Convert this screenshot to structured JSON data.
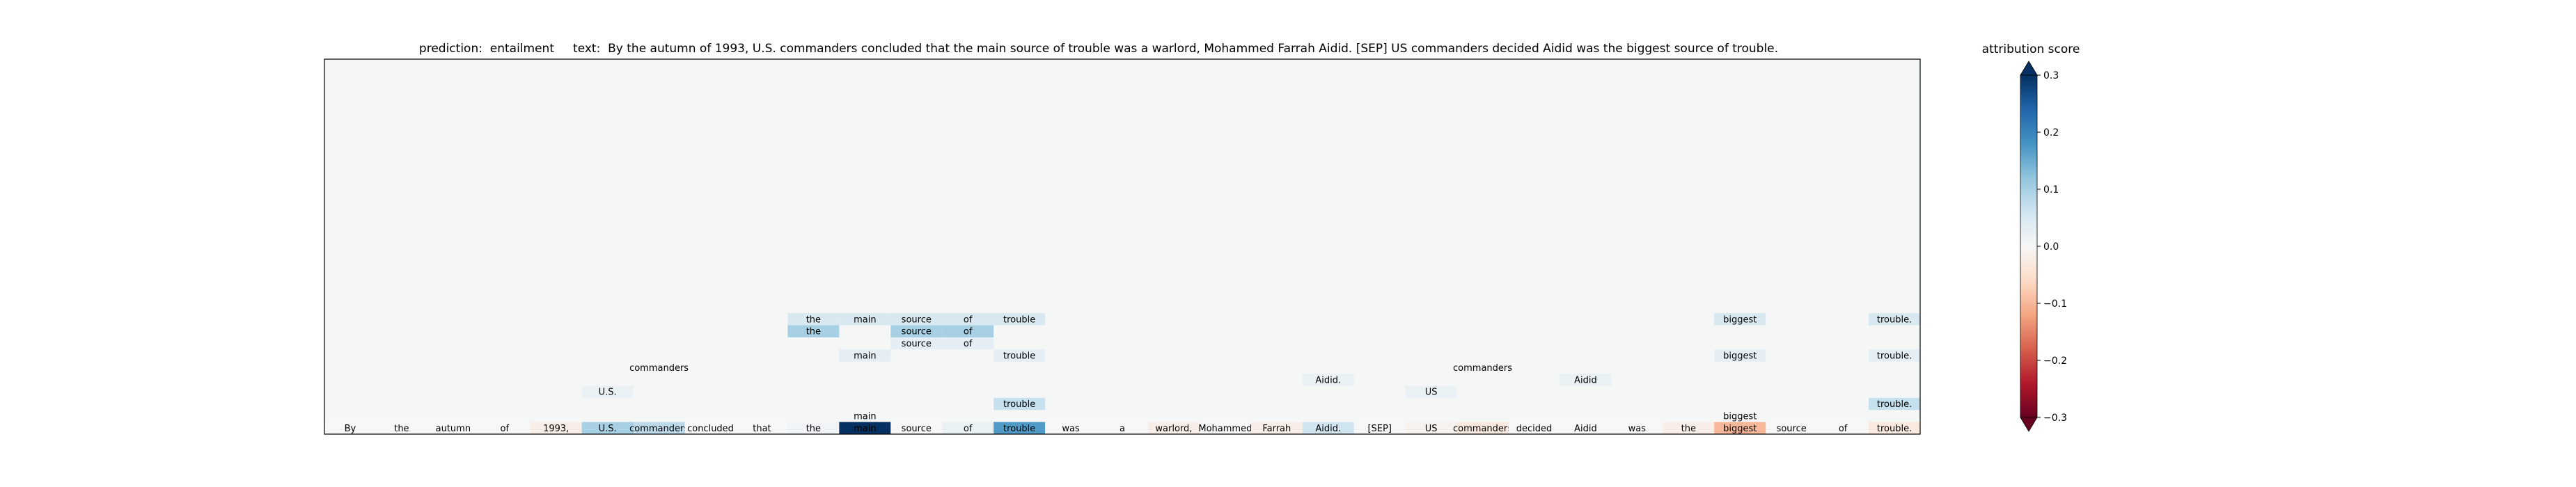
{
  "chart_data": {
    "type": "heatmap",
    "title": {
      "prediction_label": "prediction:",
      "prediction": "entailment",
      "text_label": "text:",
      "text": "By the autumn of 1993, U.S. commanders concluded that the main source of trouble was a warlord, Mohammed Farrah Aidid. [SEP] US commanders decided Aidid was the biggest source of trouble."
    },
    "tokens": [
      "By",
      "the",
      "autumn",
      "of",
      "1993,",
      "U.S.",
      "commanders",
      "concluded",
      "that",
      "the",
      "main",
      "source",
      "of",
      "trouble",
      "was",
      "a",
      "warlord,",
      "Mohammed",
      "Farrah",
      "Aidid.",
      "[SEP]",
      "US",
      "commanders",
      "decided",
      "Aidid",
      "was",
      "the",
      "biggest",
      "source",
      "of",
      "trouble."
    ],
    "token_scores": [
      0.0,
      0.0,
      0.0,
      0.0,
      -0.02,
      0.1,
      0.08,
      0.0,
      0.0,
      0.01,
      0.3,
      0.0,
      0.02,
      0.17,
      0.0,
      0.0,
      -0.02,
      0.0,
      -0.02,
      0.06,
      0.0,
      -0.01,
      -0.03,
      0.0,
      0.0,
      0.0,
      -0.02,
      -0.1,
      0.0,
      0.0,
      -0.03
    ],
    "layer_cells": [
      {
        "layer": 1,
        "token_index": 10,
        "label": "main",
        "score": 0.0
      },
      {
        "layer": 1,
        "token_index": 27,
        "label": "biggest",
        "score": 0.0
      },
      {
        "layer": 2,
        "token_index": 13,
        "label": "trouble",
        "score": 0.07
      },
      {
        "layer": 2,
        "token_index": 30,
        "label": "trouble.",
        "score": 0.07
      },
      {
        "layer": 3,
        "token_index": 5,
        "label": "U.S.",
        "score": 0.02
      },
      {
        "layer": 3,
        "token_index": 21,
        "label": "US",
        "score": 0.02
      },
      {
        "layer": 4,
        "token_index": 19,
        "label": "Aidid.",
        "score": 0.02
      },
      {
        "layer": 4,
        "token_index": 24,
        "label": "Aidid",
        "score": 0.02
      },
      {
        "layer": 5,
        "token_index": 6,
        "label": "commanders",
        "score": 0.0
      },
      {
        "layer": 5,
        "token_index": 22,
        "label": "commanders",
        "score": 0.0
      },
      {
        "layer": 6,
        "token_index": 10,
        "label": "main",
        "score": 0.03
      },
      {
        "layer": 6,
        "token_index": 13,
        "label": "trouble",
        "score": 0.03
      },
      {
        "layer": 6,
        "token_index": 27,
        "label": "biggest",
        "score": 0.03
      },
      {
        "layer": 6,
        "token_index": 30,
        "label": "trouble.",
        "score": 0.03
      },
      {
        "layer": 7,
        "token_index": 11,
        "label": "source",
        "score": 0.03
      },
      {
        "layer": 7,
        "token_index": 12,
        "label": "of",
        "score": 0.03
      },
      {
        "layer": 8,
        "token_index": 9,
        "label": "the",
        "score": 0.1
      },
      {
        "layer": 8,
        "token_index": 11,
        "label": "source",
        "score": 0.1
      },
      {
        "layer": 8,
        "token_index": 12,
        "label": "of",
        "score": 0.1
      },
      {
        "layer": 9,
        "token_index": 9,
        "label": "the",
        "score": 0.05
      },
      {
        "layer": 9,
        "token_index": 10,
        "label": "main",
        "score": 0.05
      },
      {
        "layer": 9,
        "token_index": 11,
        "label": "source",
        "score": 0.05
      },
      {
        "layer": 9,
        "token_index": 12,
        "label": "of",
        "score": 0.05
      },
      {
        "layer": 9,
        "token_index": 13,
        "label": "trouble",
        "score": 0.05
      },
      {
        "layer": 9,
        "token_index": 27,
        "label": "biggest",
        "score": 0.05
      },
      {
        "layer": 9,
        "token_index": 30,
        "label": "trouble.",
        "score": 0.05
      }
    ],
    "num_layers": 30,
    "colorbar": {
      "label": "attribution score",
      "range": [
        -0.3,
        0.3
      ],
      "ticks": [
        -0.3,
        -0.2,
        -0.1,
        0.0,
        0.1,
        0.2,
        0.3
      ],
      "tick_labels": [
        "−0.3",
        "−0.2",
        "−0.1",
        "0.0",
        "0.1",
        "0.2",
        "0.3"
      ],
      "colormap": "RdBu",
      "extend": "both"
    },
    "background_color": "#f5f6f6"
  }
}
